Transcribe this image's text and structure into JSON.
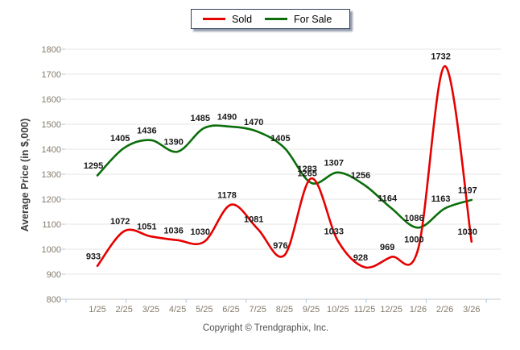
{
  "legend": {
    "items": [
      {
        "label": "Sold",
        "color": "#e60000"
      },
      {
        "label": "For Sale",
        "color": "#0b6e0b"
      }
    ]
  },
  "footer": {
    "copyright": "Copyright © Trendgraphix, Inc."
  },
  "chart_data": {
    "type": "line",
    "title": "",
    "categories": [
      "1/25",
      "2/25",
      "3/25",
      "4/25",
      "5/25",
      "6/25",
      "7/25",
      "8/25",
      "9/25",
      "10/25",
      "11/25",
      "12/25",
      "1/26",
      "2/26",
      "3/26"
    ],
    "series": [
      {
        "name": "Sold",
        "color": "#e60000",
        "values": [
          933,
          1072,
          1051,
          1036,
          1030,
          1178,
          1081,
          976,
          1283,
          1033,
          928,
          969,
          1000,
          1732,
          1030
        ]
      },
      {
        "name": "For Sale",
        "color": "#0b6e0b",
        "values": [
          1295,
          1405,
          1436,
          1390,
          1485,
          1490,
          1470,
          1405,
          1265,
          1307,
          1256,
          1164,
          1086,
          1163,
          1197
        ]
      }
    ],
    "xlabel": "",
    "ylabel": "Average Price (in $,000)",
    "ylim": [
      800,
      1800
    ],
    "ytick_step": 100,
    "grid": true,
    "legend_position": "top-center",
    "point_labels": true
  },
  "style": {
    "grid_color": "#e4e4e4",
    "axis_line_color": "#c8c8c8",
    "tick_mark_color": "#a8c6e4",
    "tick_label_color": "#847a6b",
    "value_label_color": "#1a1a1a"
  }
}
